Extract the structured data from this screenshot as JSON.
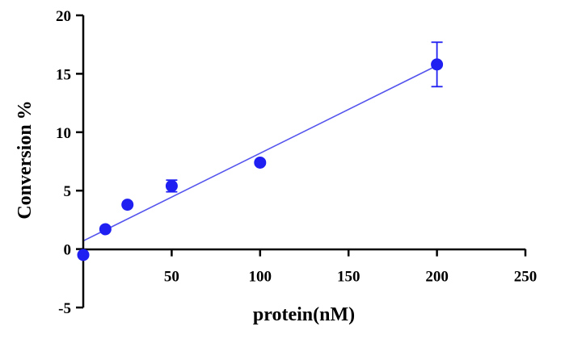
{
  "chart_data": {
    "type": "scatter",
    "xlabel": "protein(nM)",
    "ylabel": "Conversion %",
    "xlim": [
      0,
      250
    ],
    "ylim": [
      -5,
      20
    ],
    "x_ticks": [
      50,
      100,
      150,
      200,
      250
    ],
    "y_ticks": [
      -5,
      0,
      5,
      10,
      15,
      20
    ],
    "x_tick_labels": [
      "50",
      "100",
      "150",
      "200",
      "250"
    ],
    "y_tick_labels": [
      "-5",
      "0",
      "5",
      "10",
      "15",
      "20"
    ],
    "grid": false,
    "series": [
      {
        "points": [
          {
            "x": 0,
            "y": -0.5,
            "err": 0
          },
          {
            "x": 12.5,
            "y": 1.7,
            "err": 0
          },
          {
            "x": 25,
            "y": 3.8,
            "err": 0
          },
          {
            "x": 50,
            "y": 5.4,
            "err": 0.5
          },
          {
            "x": 100,
            "y": 7.4,
            "err": 0
          },
          {
            "x": 200,
            "y": 15.8,
            "err": 1.9
          }
        ],
        "fit": {
          "x": [
            0,
            200
          ],
          "y": [
            0.7,
            15.7
          ]
        },
        "color": "#1f1ff2",
        "fit_color": "#5555ee"
      }
    ]
  }
}
